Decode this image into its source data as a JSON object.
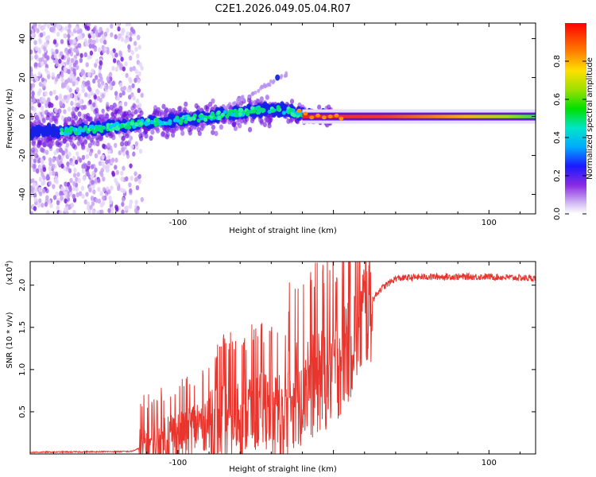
{
  "chart_data": [
    {
      "type": "heatmap",
      "title": "C2E1.2026.049.05.04.R07",
      "xlabel": "Height of straight line (km)",
      "ylabel": "Frequency (Hz)",
      "xlim": [
        -195,
        130
      ],
      "ylim": [
        -50,
        48
      ],
      "xticks": [
        -100,
        0,
        100
      ],
      "xtick_labels": [
        "-100",
        "",
        "100"
      ],
      "yticks": [
        -40,
        -20,
        0,
        20,
        40
      ],
      "ytick_labels": [
        "-40",
        "-20",
        "0",
        "20",
        "40"
      ],
      "colorbar": {
        "label": "Normalized spectral amplitude",
        "range": [
          0,
          1
        ],
        "ticks": [
          0.0,
          0.2,
          0.4,
          0.6,
          0.8
        ],
        "tick_labels": [
          "0.0",
          "0.2",
          "0.4",
          "0.6",
          "0.8"
        ],
        "colormap": "rainbow"
      },
      "ridge": {
        "description": "dominant frequency track",
        "points": [
          [
            -190,
            -8
          ],
          [
            -160,
            -7
          ],
          [
            -130,
            -4
          ],
          [
            -100,
            -2
          ],
          [
            -70,
            1
          ],
          [
            -50,
            3
          ],
          [
            -40,
            4
          ],
          [
            -30,
            3
          ],
          [
            -20,
            1
          ],
          [
            -10,
            0
          ],
          [
            0,
            0
          ],
          [
            50,
            0
          ],
          [
            100,
            0
          ],
          [
            130,
            0
          ]
        ]
      }
    },
    {
      "type": "line",
      "title": "",
      "xlabel": "Height of straight line (km)",
      "ylabel": "SNR (10 * v/v)",
      "y_multiplier": "(x10",
      "y_multiplier_exp": "4",
      "xlim": [
        -195,
        130
      ],
      "ylim": [
        0,
        2.28
      ],
      "xticks": [
        -100,
        0,
        100
      ],
      "xtick_labels": [
        "-100",
        "",
        "100"
      ],
      "yticks": [
        0.5,
        1.0,
        1.5,
        2.0
      ],
      "ytick_labels": [
        "0.5",
        "1.0",
        "1.5",
        "2.0"
      ],
      "series": [
        {
          "name": "SNR",
          "color": "#e8362e",
          "envelope_x": [
            -195,
            -130,
            -120,
            -100,
            -80,
            -60,
            -40,
            -30,
            -20,
            -10,
            0,
            10,
            20,
            30,
            40,
            60,
            80,
            100,
            130
          ],
          "envelope_y": [
            0.02,
            0.03,
            0.1,
            0.25,
            0.4,
            0.5,
            0.62,
            0.72,
            0.85,
            0.95,
            1.05,
            1.35,
            1.7,
            1.95,
            2.08,
            2.1,
            2.1,
            2.1,
            2.08
          ]
        }
      ]
    }
  ]
}
